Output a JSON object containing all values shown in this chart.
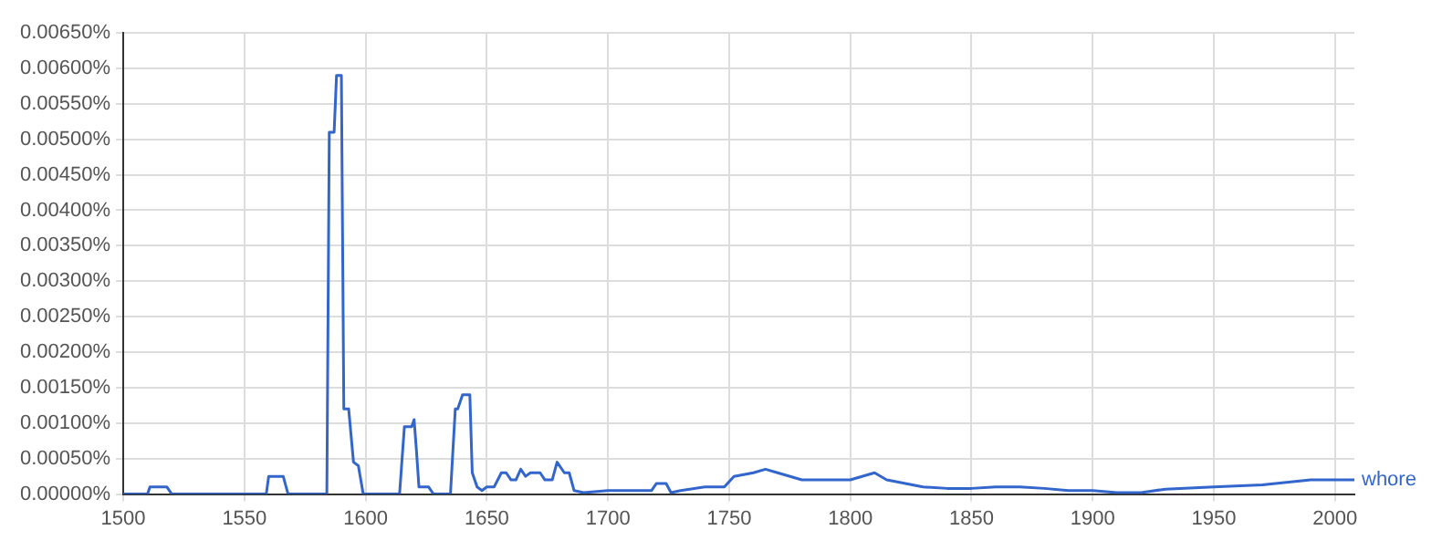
{
  "chart_data": {
    "type": "line",
    "xlim": [
      1500,
      2008
    ],
    "xticks": [
      1500,
      1550,
      1600,
      1650,
      1700,
      1750,
      1800,
      1850,
      1900,
      1950,
      2000
    ],
    "ylim": [
      0,
      0.0065
    ],
    "yticks": [
      {
        "value": 0,
        "label": "0.00000%"
      },
      {
        "value": 0.0005,
        "label": "0.00050%"
      },
      {
        "value": 0.001,
        "label": "0.00100%"
      },
      {
        "value": 0.0015,
        "label": "0.00150%"
      },
      {
        "value": 0.002,
        "label": "0.00200%"
      },
      {
        "value": 0.0025,
        "label": "0.00250%"
      },
      {
        "value": 0.003,
        "label": "0.00300%"
      },
      {
        "value": 0.0035,
        "label": "0.00350%"
      },
      {
        "value": 0.004,
        "label": "0.00400%"
      },
      {
        "value": 0.0045,
        "label": "0.00450%"
      },
      {
        "value": 0.005,
        "label": "0.00500%"
      },
      {
        "value": 0.0055,
        "label": "0.00550%"
      },
      {
        "value": 0.006,
        "label": "0.00600%"
      },
      {
        "value": 0.0065,
        "label": "0.00650%"
      }
    ],
    "grid": true,
    "legend": false,
    "marker": "none",
    "line_style": "solid",
    "series": [
      {
        "name": "whore",
        "color": "#3366cc",
        "x": [
          1500,
          1510,
          1511,
          1518,
          1520,
          1559,
          1560,
          1566,
          1568,
          1584,
          1585,
          1587,
          1588,
          1590,
          1591,
          1593,
          1595,
          1597,
          1599,
          1614,
          1616,
          1619,
          1620,
          1621,
          1622,
          1626,
          1628,
          1635,
          1637,
          1638,
          1640,
          1643,
          1644,
          1646,
          1648,
          1650,
          1653,
          1656,
          1658,
          1660,
          1662,
          1664,
          1666,
          1668,
          1672,
          1674,
          1677,
          1679,
          1682,
          1684,
          1686,
          1690,
          1700,
          1710,
          1718,
          1720,
          1724,
          1726,
          1730,
          1740,
          1748,
          1752,
          1760,
          1765,
          1770,
          1780,
          1790,
          1800,
          1810,
          1815,
          1830,
          1840,
          1850,
          1860,
          1870,
          1880,
          1890,
          1900,
          1910,
          1920,
          1930,
          1950,
          1970,
          1990,
          2000,
          2008
        ],
        "values": [
          0,
          0,
          0.0001,
          0.0001,
          0,
          0,
          0.00025,
          0.00025,
          0,
          0,
          0.0051,
          0.0051,
          0.0059,
          0.0059,
          0.0012,
          0.0012,
          0.00045,
          0.0004,
          0,
          0,
          0.00095,
          0.00095,
          0.00105,
          0.0006,
          0.0001,
          0.0001,
          0,
          0,
          0.0012,
          0.0012,
          0.0014,
          0.0014,
          0.0003,
          0.0001,
          5e-05,
          0.0001,
          0.0001,
          0.0003,
          0.0003,
          0.0002,
          0.0002,
          0.00035,
          0.00025,
          0.0003,
          0.0003,
          0.0002,
          0.0002,
          0.00045,
          0.0003,
          0.0003,
          5e-05,
          2e-05,
          5e-05,
          5e-05,
          5e-05,
          0.00015,
          0.00015,
          2e-05,
          5e-05,
          0.0001,
          0.0001,
          0.00025,
          0.0003,
          0.00035,
          0.0003,
          0.0002,
          0.0002,
          0.0002,
          0.0003,
          0.0002,
          0.0001,
          8e-05,
          8e-05,
          0.0001,
          0.0001,
          8e-05,
          5e-05,
          5e-05,
          2e-05,
          2e-05,
          7e-05,
          0.0001,
          0.00013,
          0.0002,
          0.0002,
          0.0002
        ]
      }
    ]
  }
}
